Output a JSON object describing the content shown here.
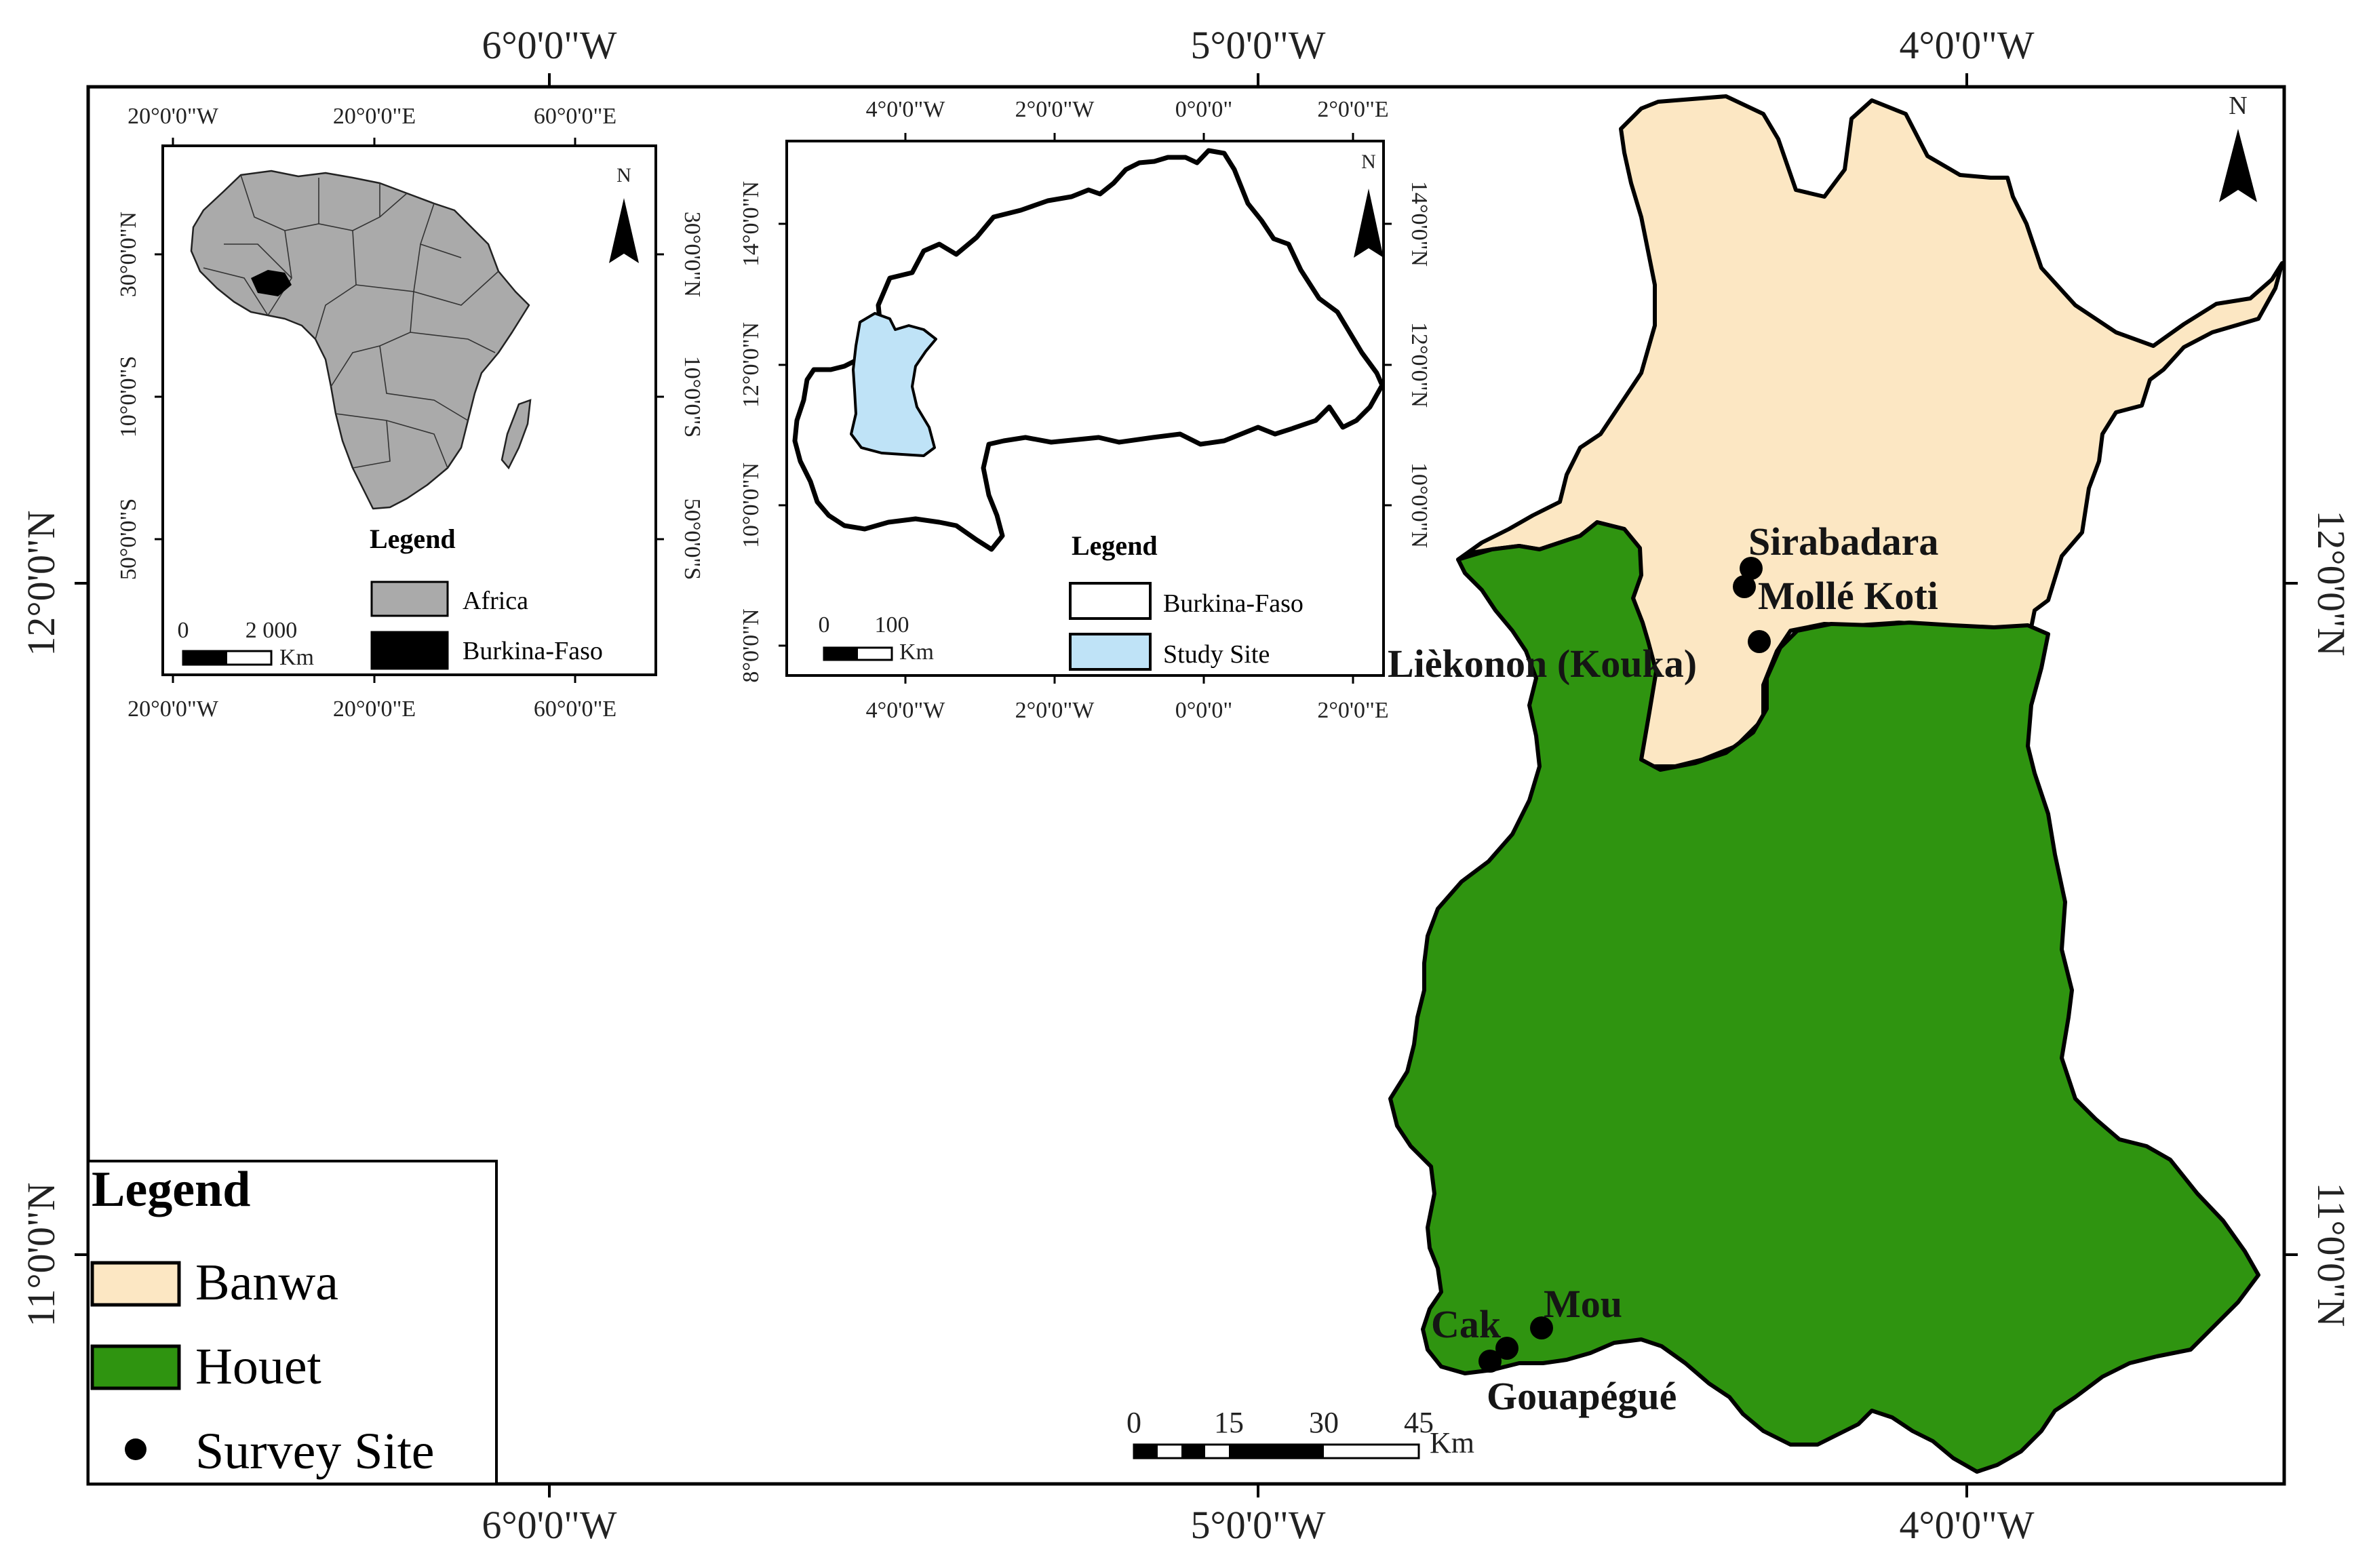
{
  "main_map": {
    "ticks_x": [
      {
        "label": "6°0'0\"W"
      },
      {
        "label": "5°0'0\"W"
      },
      {
        "label": "4°0'0\"W"
      }
    ],
    "ticks_y": [
      {
        "label": "12°0'0\"N"
      },
      {
        "label": "11°0'0\"N"
      }
    ],
    "regions": [
      {
        "name": "Banwa",
        "color": "#fce7c3"
      },
      {
        "name": "Houet",
        "color": "#2f9410"
      }
    ],
    "survey_sites": [
      {
        "name": "Sirabadara"
      },
      {
        "name": "Mollé Koti"
      },
      {
        "name": "Lièkonon (Kouka)"
      },
      {
        "name": "Mou"
      },
      {
        "name": "Cak"
      },
      {
        "name": "Gouapégué"
      }
    ],
    "legend": {
      "title": "Legend",
      "items": [
        {
          "label": "Banwa",
          "kind": "box",
          "color": "#fce7c3"
        },
        {
          "label": "Houet",
          "kind": "box",
          "color": "#2f9410"
        },
        {
          "label": "Survey Site",
          "kind": "dot",
          "color": "#000000"
        }
      ]
    },
    "scale_bar": {
      "ticks": [
        "0",
        "15",
        "30",
        "45"
      ],
      "unit": "Km"
    },
    "north_arrow": {
      "label": "N",
      "icon": "north-arrow-icon"
    }
  },
  "africa_inset": {
    "ticks_top": [
      "20°0'0\"W",
      "20°0'0\"E",
      "60°0'0\"E"
    ],
    "ticks_bottom": [
      "20°0'0\"W",
      "20°0'0\"E",
      "60°0'0\"E"
    ],
    "ticks_left": [
      "30°0'0\"N",
      "10°0'0\"S",
      "50°0'0\"S"
    ],
    "ticks_right": [
      "30°0'0\"N",
      "10°0'0\"S",
      "50°0'0\"S"
    ],
    "legend": {
      "title": "Legend",
      "items": [
        {
          "label": "Africa",
          "color": "#aaaaaa"
        },
        {
          "label": "Burkina-Faso",
          "color": "#000000"
        }
      ]
    },
    "scale_bar": {
      "ticks": [
        "0",
        "2 000"
      ],
      "unit": "Km"
    },
    "north_arrow": {
      "label": "N"
    }
  },
  "burkina_inset": {
    "ticks_top": [
      "4°0'0\"W",
      "2°0'0\"W",
      "0°0'0\"",
      "2°0'0\"E"
    ],
    "ticks_bottom": [
      "4°0'0\"W",
      "2°0'0\"W",
      "0°0'0\"",
      "2°0'0\"E"
    ],
    "ticks_left": [
      "14°0'0\"N",
      "12°0'0\"N",
      "10°0'0\"N",
      "8°0'0\"N"
    ],
    "ticks_right": [
      "14°0'0\"N",
      "12°0'0\"N",
      "10°0'0\"N"
    ],
    "legend": {
      "title": "Legend",
      "items": [
        {
          "label": "Burkina-Faso",
          "color": "#ffffff"
        },
        {
          "label": "Study Site",
          "color": "#bfe3f7"
        }
      ]
    },
    "scale_bar": {
      "ticks": [
        "0",
        "100"
      ],
      "unit": "Km"
    },
    "north_arrow": {
      "label": "N"
    }
  }
}
